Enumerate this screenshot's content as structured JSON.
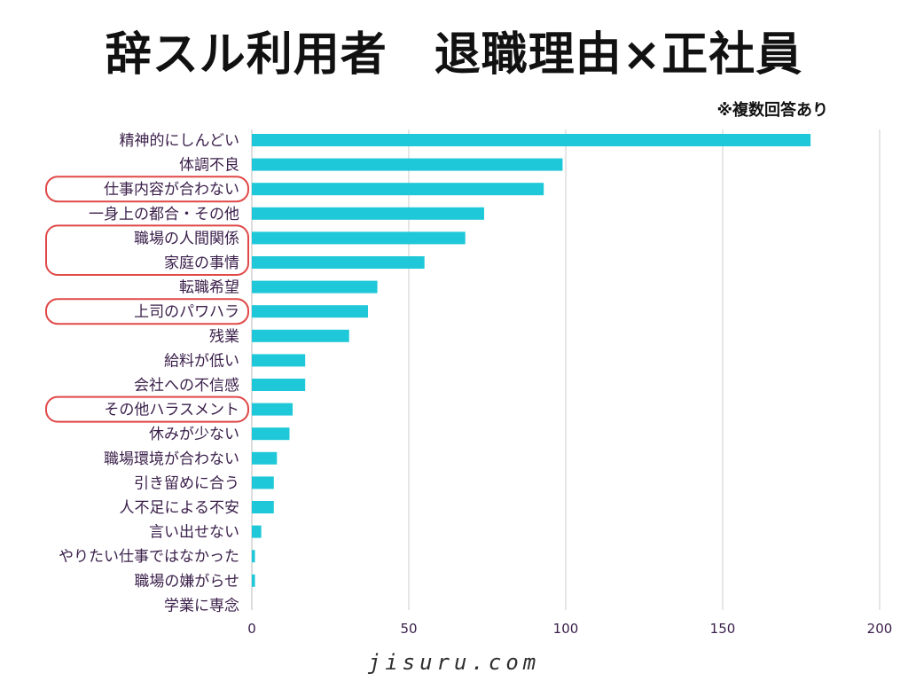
{
  "page": {
    "title": "辞スル利用者　退職理由×正社員",
    "note": "※複数回答あり",
    "footer": "jisuru.com"
  },
  "colors": {
    "bar": "#1ec8d8",
    "highlight_outline": "#e04848",
    "grid": "#cccccc",
    "label_text": "#3a1f4a"
  },
  "chart_data": {
    "type": "bar",
    "orientation": "horizontal",
    "title": "辞スル利用者　退職理由×正社員",
    "xlabel": "",
    "ylabel": "",
    "xlim": [
      0,
      200
    ],
    "xticks": [
      0,
      50,
      100,
      150,
      200
    ],
    "grid": true,
    "categories": [
      "精神的にしんどい",
      "体調不良",
      "仕事内容が合わない",
      "一身上の都合・その他",
      "職場の人間関係",
      "家庭の事情",
      "転職希望",
      "上司のパワハラ",
      "残業",
      "給料が低い",
      "会社への不信感",
      "その他ハラスメント",
      "休みが少ない",
      "職場環境が合わない",
      "引き留めに合う",
      "人不足による不安",
      "言い出せない",
      "やりたい仕事ではなかった",
      "職場の嫌がらせ",
      "学業に専念"
    ],
    "values": [
      178,
      99,
      93,
      74,
      68,
      55,
      40,
      37,
      31,
      17,
      17,
      13,
      12,
      8,
      7,
      7,
      3,
      1,
      1,
      0
    ],
    "highlighted_groups": [
      [
        "仕事内容が合わない"
      ],
      [
        "職場の人間関係",
        "家庭の事情"
      ],
      [
        "上司のパワハラ"
      ],
      [
        "その他ハラスメント"
      ]
    ]
  }
}
